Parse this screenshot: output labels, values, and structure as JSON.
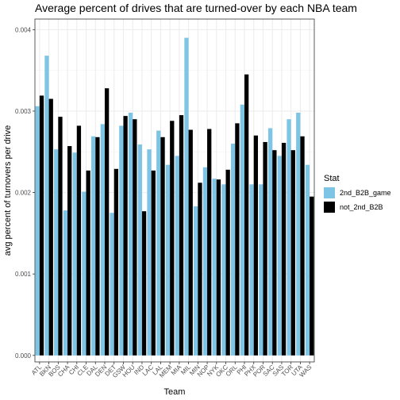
{
  "chart_data": {
    "type": "bar",
    "title": "Average percent of drives that are turned-over by each NBA team",
    "xlabel": "Team",
    "ylabel": "avg percent of turnovers per drive",
    "ylim": [
      -8e-05,
      0.00413
    ],
    "yticks": [
      {
        "value": 0,
        "label": "0.000"
      },
      {
        "value": 0.001,
        "label": "0.001"
      },
      {
        "value": 0.002,
        "label": "0.002"
      },
      {
        "value": 0.003,
        "label": "0.003"
      },
      {
        "value": 0.004,
        "label": "0.004"
      }
    ],
    "grid": true,
    "legend_position": "right",
    "legend_title": "Stat",
    "categories": [
      "ATL",
      "BKN",
      "BOS",
      "CHA",
      "CHI",
      "CLE",
      "DAL",
      "DEN",
      "DET",
      "GSW",
      "HOU",
      "IND",
      "LAC",
      "LAL",
      "MEM",
      "MIA",
      "MIL",
      "MIN",
      "NOP",
      "NYK",
      "OKC",
      "ORL",
      "PHI",
      "PHX",
      "POR",
      "SAC",
      "SAS",
      "TOR",
      "UTA",
      "WAS"
    ],
    "series": [
      {
        "name": "2nd_B2B_game",
        "color": "#7ec4e4",
        "values": [
          0.00306,
          0.00368,
          0.00253,
          0.00178,
          0.00249,
          0.00201,
          0.00269,
          0.00284,
          0.00175,
          0.00282,
          0.00298,
          0.00259,
          0.00253,
          0.00276,
          0.00234,
          0.00245,
          0.0039,
          0.00183,
          0.00231,
          0.00217,
          0.0021,
          0.0026,
          0.00308,
          0.0021,
          0.0021,
          0.00279,
          0.00245,
          0.0029,
          0.00298,
          0.00234
        ]
      },
      {
        "name": "not_2nd_B2B",
        "color": "#000000",
        "values": [
          0.00319,
          0.00315,
          0.00293,
          0.00257,
          0.00282,
          0.00227,
          0.00268,
          0.00328,
          0.00229,
          0.00294,
          0.0029,
          0.00177,
          0.00227,
          0.00268,
          0.00288,
          0.00295,
          0.00277,
          0.00212,
          0.00278,
          0.00216,
          0.00228,
          0.00285,
          0.00345,
          0.0027,
          0.00262,
          0.00252,
          0.00261,
          0.00252,
          0.00269,
          0.00195
        ]
      }
    ]
  }
}
